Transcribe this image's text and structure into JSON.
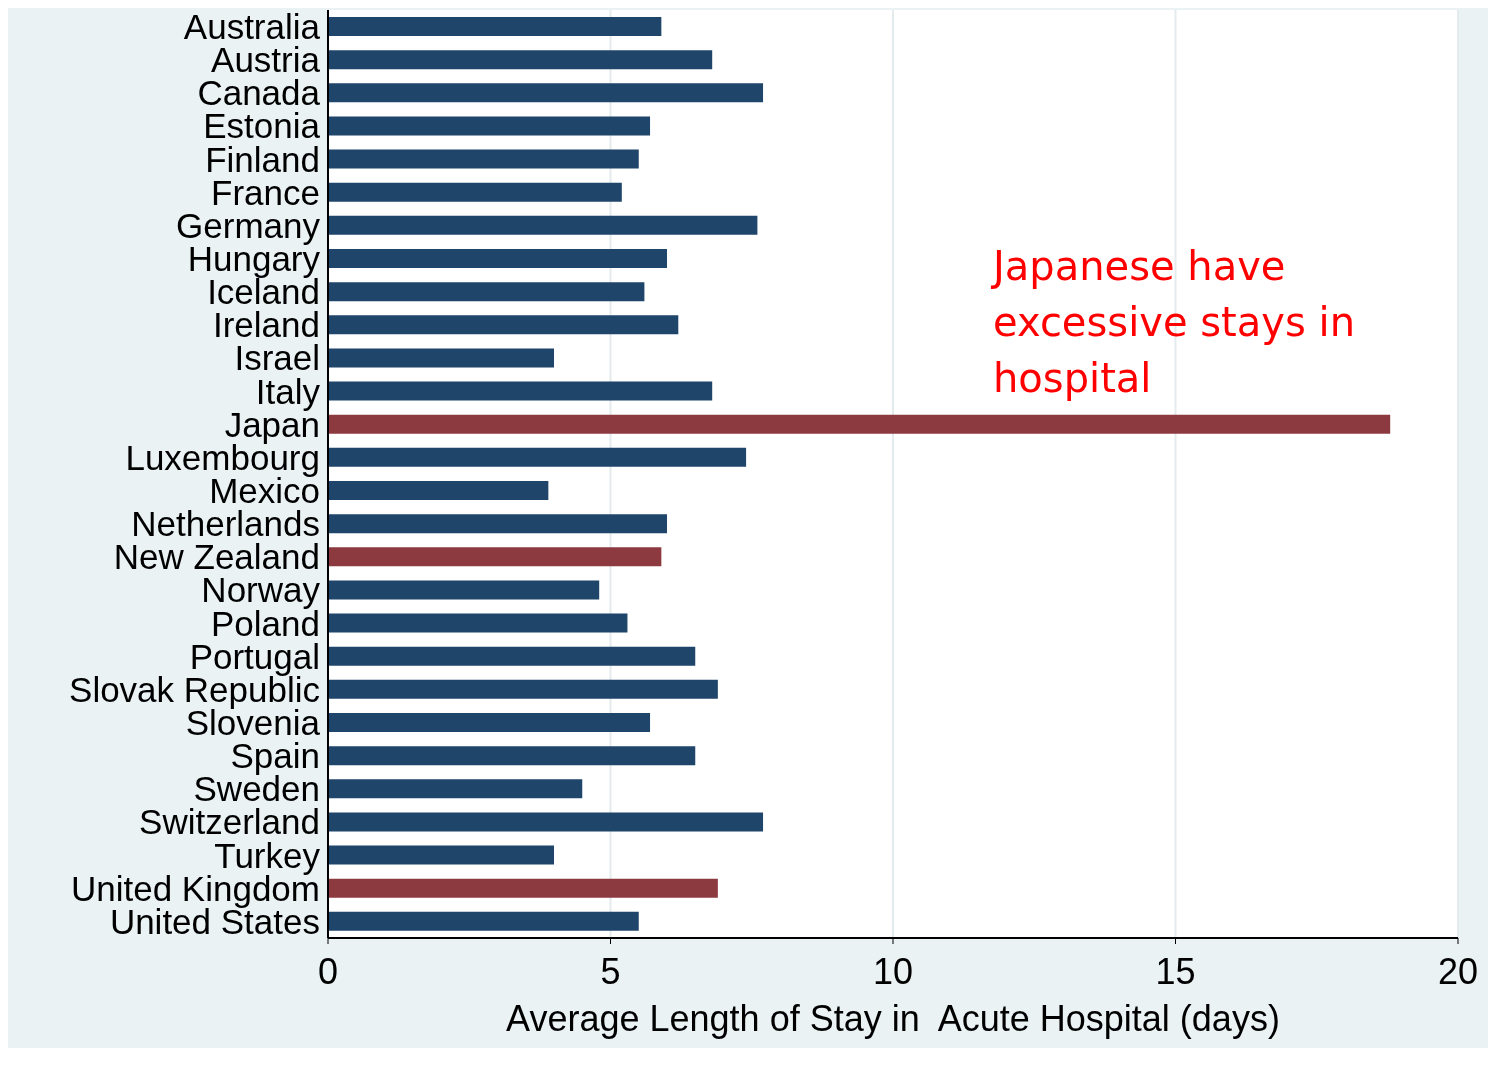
{
  "chart_data": {
    "type": "bar",
    "orientation": "horizontal",
    "xlabel": "Average Length of Stay in  Acute Hospital (days)",
    "categories": [
      "Australia",
      "Austria",
      "Canada",
      "Estonia",
      "Finland",
      "France",
      "Germany",
      "Hungary",
      "Iceland",
      "Ireland",
      "Israel",
      "Italy",
      "Japan",
      "Luxembourg",
      "Mexico",
      "Netherlands",
      "New Zealand",
      "Norway",
      "Poland",
      "Portugal",
      "Slovak Republic",
      "Slovenia",
      "Spain",
      "Sweden",
      "Switzerland",
      "Turkey",
      "United Kingdom",
      "United States"
    ],
    "values": [
      5.9,
      6.8,
      7.7,
      5.7,
      5.5,
      5.2,
      7.6,
      6.0,
      5.6,
      6.2,
      4.0,
      6.8,
      18.8,
      7.4,
      3.9,
      6.0,
      5.9,
      4.8,
      5.3,
      6.5,
      6.9,
      5.7,
      6.5,
      4.5,
      7.7,
      4.0,
      6.9,
      5.5
    ],
    "colors": [
      "#1f456b",
      "#1f456b",
      "#1f456b",
      "#1f456b",
      "#1f456b",
      "#1f456b",
      "#1f456b",
      "#1f456b",
      "#1f456b",
      "#1f456b",
      "#1f456b",
      "#1f456b",
      "#8c3940",
      "#1f456b",
      "#1f456b",
      "#1f456b",
      "#8c3940",
      "#1f456b",
      "#1f456b",
      "#1f456b",
      "#1f456b",
      "#1f456b",
      "#1f456b",
      "#1f456b",
      "#1f456b",
      "#1f456b",
      "#8c3940",
      "#1f456b"
    ],
    "xlim": [
      0,
      20
    ],
    "xticks": [
      0,
      5,
      10,
      15,
      20
    ],
    "grid": "x",
    "annotations": [
      "Japanese have excessive stays in hospital"
    ]
  }
}
